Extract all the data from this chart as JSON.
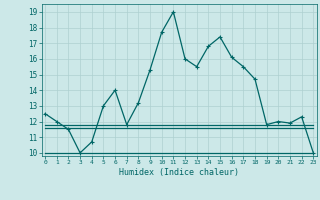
{
  "xlabel": "Humidex (Indice chaleur)",
  "x": [
    0,
    1,
    2,
    3,
    4,
    5,
    6,
    7,
    8,
    9,
    10,
    11,
    12,
    13,
    14,
    15,
    16,
    17,
    18,
    19,
    20,
    21,
    22,
    23
  ],
  "y_main": [
    12.5,
    12.0,
    11.5,
    10.0,
    10.7,
    13.0,
    14.0,
    11.8,
    13.2,
    15.3,
    17.7,
    19.0,
    16.0,
    15.5,
    16.8,
    17.4,
    16.1,
    15.5,
    14.7,
    11.8,
    12.0,
    11.9,
    12.3,
    10.0
  ],
  "y_flat1": [
    11.6,
    11.6,
    11.6,
    11.6,
    11.6,
    11.6,
    11.6,
    11.6,
    11.6,
    11.6,
    11.6,
    11.6,
    11.6,
    11.6,
    11.6,
    11.6,
    11.6,
    11.6,
    11.6,
    11.6,
    11.6,
    11.6,
    11.6,
    11.6
  ],
  "y_flat2": [
    11.8,
    11.8,
    11.8,
    11.8,
    11.8,
    11.8,
    11.8,
    11.8,
    11.8,
    11.8,
    11.8,
    11.8,
    11.8,
    11.8,
    11.8,
    11.8,
    11.8,
    11.8,
    11.8,
    11.8,
    11.8,
    11.8,
    11.8,
    11.8
  ],
  "y_flat3": [
    10.0,
    10.0,
    10.0,
    10.0,
    10.0,
    10.0,
    10.0,
    10.0,
    10.0,
    10.0,
    10.0,
    10.0,
    10.0,
    10.0,
    10.0,
    10.0,
    10.0,
    10.0,
    10.0,
    10.0,
    10.0,
    10.0,
    10.0,
    10.0
  ],
  "line_color": "#006666",
  "bg_color": "#cce8e8",
  "grid_color": "#aed0d0",
  "ylim": [
    9.8,
    19.5
  ],
  "yticks": [
    10,
    11,
    12,
    13,
    14,
    15,
    16,
    17,
    18,
    19
  ],
  "xticks": [
    0,
    1,
    2,
    3,
    4,
    5,
    6,
    7,
    8,
    9,
    10,
    11,
    12,
    13,
    14,
    15,
    16,
    17,
    18,
    19,
    20,
    21,
    22,
    23
  ],
  "xlim": [
    -0.3,
    23.3
  ],
  "markersize": 2.5,
  "linewidth": 0.9
}
